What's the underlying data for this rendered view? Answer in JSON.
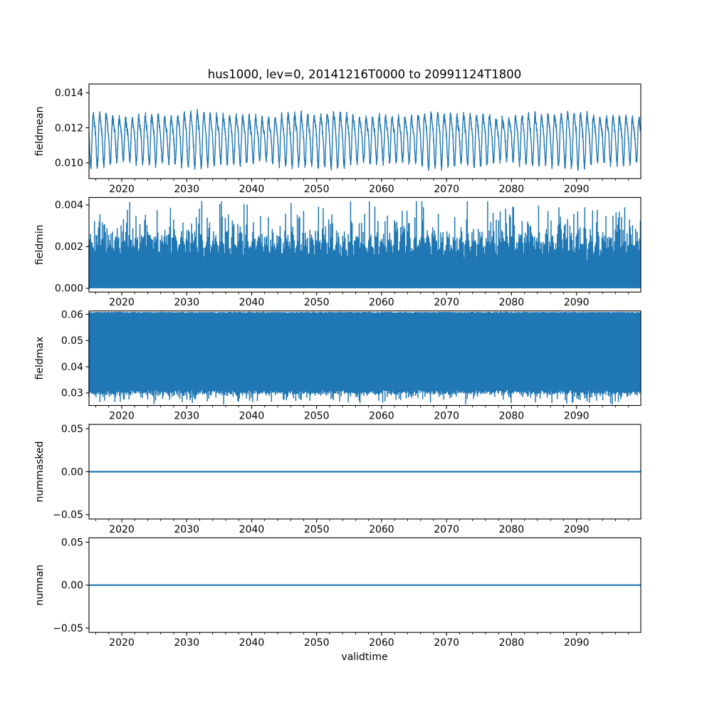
{
  "figure": {
    "title": "hus1000, lev=0, 20141216T0000 to 20991124T1800",
    "xlabel": "validtime"
  },
  "colors": {
    "line": "#1f77b4",
    "axis": "#000000",
    "text": "#000000",
    "background": "#ffffff"
  },
  "x_axis": {
    "range": [
      2014.96,
      2099.9
    ],
    "major_ticks": [
      2020,
      2030,
      2040,
      2050,
      2060,
      2070,
      2080,
      2090
    ],
    "major_tick_labels": [
      "2020",
      "2030",
      "2040",
      "2050",
      "2060",
      "2070",
      "2080",
      "2090"
    ],
    "minor_tick_step": 2,
    "minor_tick_start": 2016,
    "minor_tick_end": 2098
  },
  "chart_data": [
    {
      "type": "line",
      "name": "fieldmean",
      "ylabel": "fieldmean",
      "ylim": [
        0.0091,
        0.0145
      ],
      "yticks": [
        {
          "v": 0.01,
          "label": "0.010"
        },
        {
          "v": 0.012,
          "label": "0.012"
        },
        {
          "v": 0.014,
          "label": "0.014"
        }
      ],
      "approx_value_range": [
        0.0093,
        0.0142
      ],
      "description": "Dense 6-hourly mean series with an annual oscillation between roughly 0.0095 and 0.0135, noisy texture, occasional extremes near 0.0093 and 0.0142 (tallest peak near 2068).",
      "signal": {
        "kind": "seasonal_line",
        "base": 0.01145,
        "season_amp": 0.00125,
        "season_phase": 0.55,
        "second_amp": 0.00035,
        "noise": 0.00028,
        "points": 4200,
        "seed": 42
      }
    },
    {
      "type": "line",
      "name": "fieldmin",
      "ylabel": "fieldmin",
      "ylim": [
        -0.00018,
        0.00436
      ],
      "yticks": [
        {
          "v": 0.0,
          "label": "0.000"
        },
        {
          "v": 0.002,
          "label": "0.002"
        },
        {
          "v": 0.004,
          "label": "0.004"
        }
      ],
      "approx_value_range": [
        0.0,
        0.0042
      ],
      "description": "Rapidly oscillating minimum series; fills solidly from 0.000 upward with a spiky upper envelope whose peaks vary between about 0.0025 and 0.0042.",
      "signal": {
        "kind": "fill_from_zero",
        "env_base": 0.00215,
        "env_season": 0.00035,
        "spike": 0.0019,
        "noise": 0.00028,
        "min": 0.0005,
        "max": 0.00418,
        "seed": 7
      }
    },
    {
      "type": "line",
      "name": "fieldmax",
      "ylabel": "fieldmax",
      "ylim": [
        0.0252,
        0.0613
      ],
      "yticks": [
        {
          "v": 0.03,
          "label": "0.03"
        },
        {
          "v": 0.04,
          "label": "0.04"
        },
        {
          "v": 0.05,
          "label": "0.05"
        },
        {
          "v": 0.06,
          "label": "0.06"
        }
      ],
      "approx_value_range": [
        0.0255,
        0.061
      ],
      "description": "Rapidly oscillating maximum series; fills solidly up to about 0.061 (top of axes) with a ragged lower envelope mostly between 0.028 and 0.033, spikes down to about 0.026.",
      "signal": {
        "kind": "fill_from_top",
        "hi_base": 0.0608,
        "hi_jitter": 0.0004,
        "lo_base": 0.0306,
        "lo_noise": 0.0014,
        "lo_spike": 0.004,
        "lo_min": 0.0256,
        "seed": 13
      }
    },
    {
      "type": "line",
      "name": "nummasked",
      "ylabel": "nummasked",
      "ylim": [
        -0.055,
        0.055
      ],
      "yticks": [
        {
          "v": -0.05,
          "label": "−0.05"
        },
        {
          "v": 0.0,
          "label": "0.00"
        },
        {
          "v": 0.05,
          "label": "0.05"
        }
      ],
      "constant_value": 0,
      "description": "Constant zero line across the full time range.",
      "signal": {
        "kind": "constant",
        "value": 0
      }
    },
    {
      "type": "line",
      "name": "numnan",
      "ylabel": "numnan",
      "ylim": [
        -0.055,
        0.055
      ],
      "yticks": [
        {
          "v": -0.05,
          "label": "−0.05"
        },
        {
          "v": 0.0,
          "label": "0.00"
        },
        {
          "v": 0.05,
          "label": "0.05"
        }
      ],
      "constant_value": 0,
      "description": "Constant zero line across the full time range.",
      "signal": {
        "kind": "constant",
        "value": 0
      }
    }
  ]
}
